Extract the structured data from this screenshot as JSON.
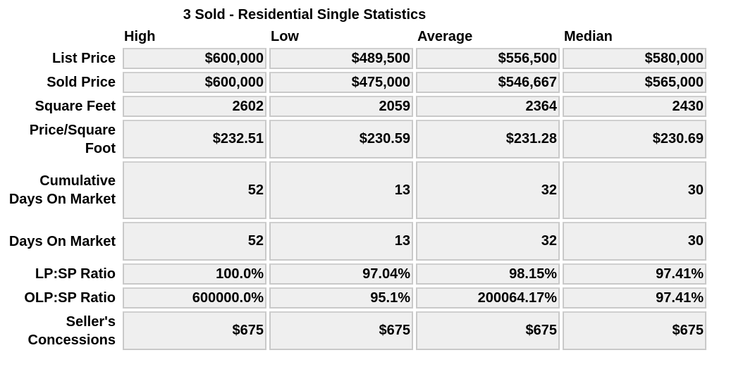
{
  "table": {
    "title": "3 Sold - Residential Single Statistics",
    "columns": [
      "High",
      "Low",
      "Average",
      "Median"
    ],
    "rows": [
      {
        "label": "List Price",
        "values": [
          "$600,000",
          "$489,500",
          "$556,500",
          "$580,000"
        ]
      },
      {
        "label": "Sold Price",
        "values": [
          "$600,000",
          "$475,000",
          "$546,667",
          "$565,000"
        ]
      },
      {
        "label": "Square Feet",
        "values": [
          "2602",
          "2059",
          "2364",
          "2430"
        ]
      },
      {
        "label": "Price/Square Foot",
        "values": [
          "$232.51",
          "$230.59",
          "$231.28",
          "$230.69"
        ]
      },
      {
        "label": "Cumulative Days On Market",
        "values": [
          "52",
          "13",
          "32",
          "30"
        ]
      },
      {
        "label": "Days On Market",
        "values": [
          "52",
          "13",
          "32",
          "30"
        ]
      },
      {
        "label": "LP:SP Ratio",
        "values": [
          "100.0%",
          "97.04%",
          "98.15%",
          "97.41%"
        ]
      },
      {
        "label": "OLP:SP Ratio",
        "values": [
          "600000.0%",
          "95.1%",
          "200064.17%",
          "97.41%"
        ]
      },
      {
        "label": "Seller's Concessions",
        "values": [
          "$675",
          "$675",
          "$675",
          "$675"
        ]
      }
    ]
  }
}
